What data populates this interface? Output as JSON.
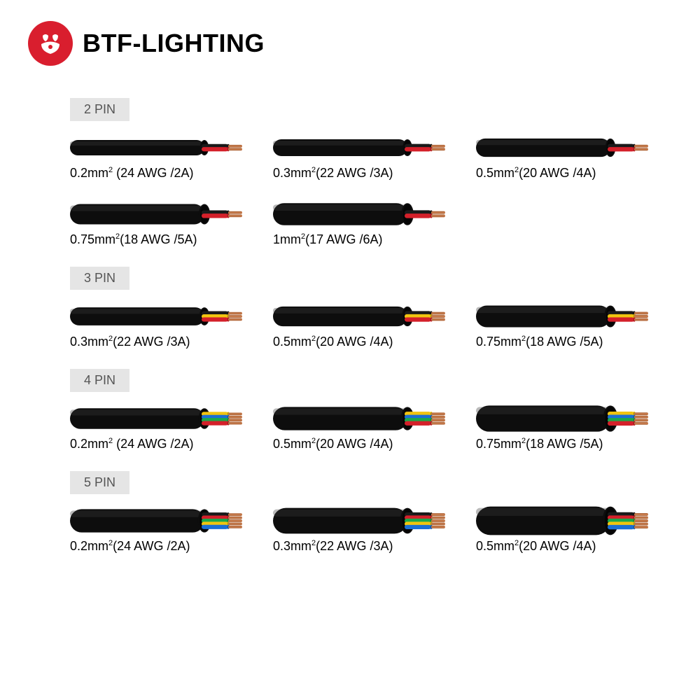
{
  "brand": {
    "name": "BTF-LIGHTING",
    "logo_bg": "#d91e2e",
    "logo_fg": "#ffffff"
  },
  "colors": {
    "badge_bg": "#e5e5e5",
    "badge_text": "#555555",
    "sheath": "#0d0d0d",
    "sheath_hilite": "#3a3a3a",
    "copper": "#c77a4a",
    "copper_dark": "#9a5a34",
    "wire_black": "#1a1a1a",
    "wire_red": "#d4202a",
    "wire_yellow": "#f1c40f",
    "wire_green": "#1aa84b",
    "wire_blue": "#1a6fd4"
  },
  "sections": [
    {
      "badge": "2 PIN",
      "cables": [
        {
          "label_html": "0.2mm<sup>2</sup> (24 AWG /2A)",
          "wires": [
            "wire_black",
            "wire_red"
          ],
          "thickness": 1.0
        },
        {
          "label_html": "0.3mm<sup>2</sup>(22 AWG /3A)",
          "wires": [
            "wire_black",
            "wire_red"
          ],
          "thickness": 1.12
        },
        {
          "label_html": "0.5mm<sup>2</sup>(20 AWG /4A)",
          "wires": [
            "wire_black",
            "wire_red"
          ],
          "thickness": 1.25
        },
        {
          "label_html": "0.75mm<sup>2</sup>(18 AWG /5A)",
          "wires": [
            "wire_black",
            "wire_red"
          ],
          "thickness": 1.4
        },
        {
          "label_html": "1mm<sup>2</sup>(17 AWG /6A)",
          "wires": [
            "wire_black",
            "wire_red"
          ],
          "thickness": 1.55
        }
      ]
    },
    {
      "badge": "3 PIN",
      "cables": [
        {
          "label_html": "0.3mm<sup>2</sup>(22 AWG /3A)",
          "wires": [
            "wire_black",
            "wire_yellow",
            "wire_red"
          ],
          "thickness": 1.0
        },
        {
          "label_html": "0.5mm<sup>2</sup>(20 AWG /4A)",
          "wires": [
            "wire_black",
            "wire_yellow",
            "wire_red"
          ],
          "thickness": 1.12
        },
        {
          "label_html": "0.75mm<sup>2</sup>(18 AWG /5A)",
          "wires": [
            "wire_black",
            "wire_yellow",
            "wire_red"
          ],
          "thickness": 1.25
        }
      ]
    },
    {
      "badge": "4 PIN",
      "cables": [
        {
          "label_html": "0.2mm<sup>2</sup> (24 AWG /2A)",
          "wires": [
            "wire_yellow",
            "wire_blue",
            "wire_green",
            "wire_red"
          ],
          "thickness": 1.0
        },
        {
          "label_html": "0.5mm<sup>2</sup>(20 AWG /4A)",
          "wires": [
            "wire_yellow",
            "wire_blue",
            "wire_green",
            "wire_red"
          ],
          "thickness": 1.15
        },
        {
          "label_html": "0.75mm<sup>2</sup>(18 AWG /5A)",
          "wires": [
            "wire_yellow",
            "wire_blue",
            "wire_green",
            "wire_red"
          ],
          "thickness": 1.3
        }
      ]
    },
    {
      "badge": "5 PIN",
      "cables": [
        {
          "label_html": "0.2mm<sup>2</sup>(24 AWG /2A)",
          "wires": [
            "wire_black",
            "wire_red",
            "wire_green",
            "wire_yellow",
            "wire_blue"
          ],
          "thickness": 1.0
        },
        {
          "label_html": "0.3mm<sup>2</sup>(22 AWG /3A)",
          "wires": [
            "wire_black",
            "wire_red",
            "wire_green",
            "wire_yellow",
            "wire_blue"
          ],
          "thickness": 1.12
        },
        {
          "label_html": "0.5mm<sup>2</sup>(20 AWG /4A)",
          "wires": [
            "wire_black",
            "wire_red",
            "wire_green",
            "wire_yellow",
            "wire_blue"
          ],
          "thickness": 1.25
        }
      ]
    }
  ]
}
